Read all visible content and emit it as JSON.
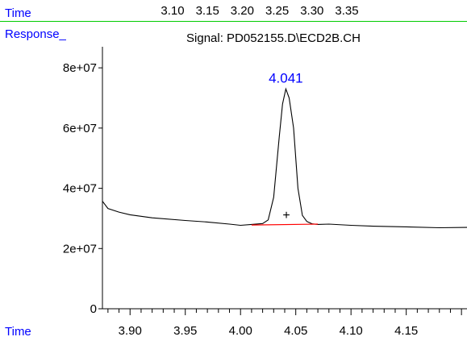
{
  "header": {
    "time_label": "Time",
    "response_label": "Response_",
    "top_ticks": [
      "3.10",
      "3.15",
      "3.20",
      "3.25",
      "3.30",
      "3.35"
    ]
  },
  "footer": {
    "time_label": "Time"
  },
  "colors": {
    "label_blue": "#0000ff",
    "trace": "#000000",
    "baseline": "#ff0000",
    "separator": "#00cc00"
  },
  "chart_data": {
    "type": "line",
    "title": "Signal: PD052155.D\\ECD2B.CH",
    "xlabel": "Time",
    "ylabel": "Response_",
    "xlim": [
      3.875,
      4.205
    ],
    "ylim": [
      0,
      87000000
    ],
    "yticks": [
      0,
      20000000,
      40000000,
      60000000,
      80000000
    ],
    "ytick_labels": [
      "0",
      "2e+07",
      "4e+07",
      "6e+07",
      "8e+07"
    ],
    "xticks": [
      3.9,
      3.95,
      4.0,
      4.05,
      4.1,
      4.15
    ],
    "xtick_labels": [
      "3.90",
      "3.95",
      "4.00",
      "4.05",
      "4.10",
      "4.15"
    ],
    "series": [
      {
        "x": [
          3.875,
          3.88,
          3.89,
          3.9,
          3.92,
          3.95,
          3.97,
          3.99,
          4.0,
          4.01,
          4.02,
          4.025,
          4.03,
          4.035,
          4.038,
          4.041,
          4.044,
          4.048,
          4.052,
          4.056,
          4.06,
          4.065,
          4.07,
          4.08,
          4.1,
          4.12,
          4.15,
          4.18,
          4.205
        ],
        "values": [
          35700000,
          33300000,
          32100000,
          31200000,
          30200000,
          29300000,
          28800000,
          28100000,
          27700000,
          28000000,
          28300000,
          29500000,
          37000000,
          57000000,
          68000000,
          73000000,
          70000000,
          60000000,
          40000000,
          31000000,
          29000000,
          28200000,
          28000000,
          28100000,
          27700000,
          27400000,
          27200000,
          26900000,
          27000000
        ]
      }
    ],
    "annotations": [
      {
        "text": "4.041",
        "x": 4.041,
        "y": 73000000
      }
    ],
    "integration_baseline": {
      "x": [
        4.01,
        4.07
      ],
      "y": [
        27800000,
        28100000
      ]
    },
    "marker": {
      "symbol": "+",
      "x": 4.0415,
      "y": 31000000
    }
  }
}
